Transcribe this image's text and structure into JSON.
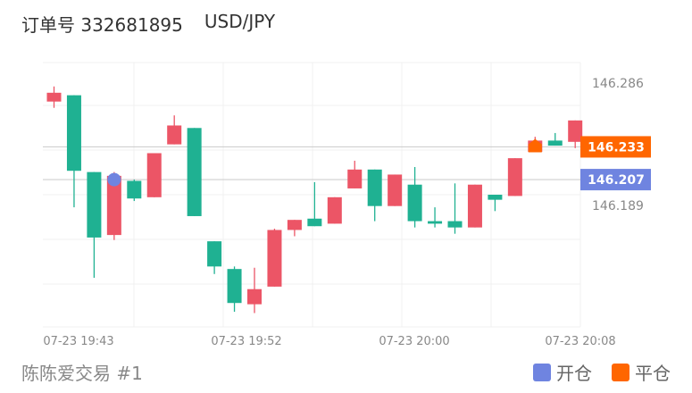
{
  "header": {
    "order_label": "订单号 332681895",
    "symbol": "USD/JPY"
  },
  "footer": {
    "account": "陈陈爱交易 #1"
  },
  "legend": [
    {
      "label": "开仓",
      "color": "#6f84e0"
    },
    {
      "label": "平仓",
      "color": "#ff6600"
    }
  ],
  "colors": {
    "up": "#ec5566",
    "down": "#1fb192",
    "open_marker": "#6f84e0",
    "close_marker": "#ff6600"
  },
  "chart_data": {
    "type": "candlestick",
    "x_ticks": [
      "07-23 19:43",
      "07-23 19:52",
      "07-23 20:00",
      "07-23 20:08"
    ],
    "y_ticks": [
      "146.286",
      "146.189"
    ],
    "price_badges": [
      {
        "label": "146.233",
        "value": 146.233,
        "color": "#ff6600"
      },
      {
        "label": "146.207",
        "value": 146.207,
        "color": "#6f84e0"
      }
    ],
    "candles": [
      {
        "o": 146.269,
        "c": 146.276,
        "h": 146.281,
        "l": 146.264
      },
      {
        "o": 146.274,
        "c": 146.214,
        "h": 146.274,
        "l": 146.185
      },
      {
        "o": 146.213,
        "c": 146.161,
        "h": 146.213,
        "l": 146.129
      },
      {
        "o": 146.163,
        "c": 146.21,
        "h": 146.213,
        "l": 146.159
      },
      {
        "o": 146.206,
        "c": 146.192,
        "h": 146.207,
        "l": 146.19
      },
      {
        "o": 146.193,
        "c": 146.228,
        "h": 146.228,
        "l": 146.193
      },
      {
        "o": 146.235,
        "c": 146.25,
        "h": 146.258,
        "l": 146.235
      },
      {
        "o": 146.248,
        "c": 146.178,
        "h": 146.248,
        "l": 146.178
      },
      {
        "o": 146.158,
        "c": 146.138,
        "h": 146.158,
        "l": 146.132
      },
      {
        "o": 146.136,
        "c": 146.109,
        "h": 146.138,
        "l": 146.102
      },
      {
        "o": 146.108,
        "c": 146.12,
        "h": 146.137,
        "l": 146.101
      },
      {
        "o": 146.122,
        "c": 146.167,
        "h": 146.168,
        "l": 146.122
      },
      {
        "o": 146.167,
        "c": 146.175,
        "h": 146.175,
        "l": 146.162
      },
      {
        "o": 146.176,
        "c": 146.17,
        "h": 146.205,
        "l": 146.17
      },
      {
        "o": 146.172,
        "c": 146.193,
        "h": 146.193,
        "l": 146.172
      },
      {
        "o": 146.2,
        "c": 146.215,
        "h": 146.222,
        "l": 146.2
      },
      {
        "o": 146.215,
        "c": 146.186,
        "h": 146.215,
        "l": 146.174
      },
      {
        "o": 146.186,
        "c": 146.211,
        "h": 146.211,
        "l": 146.186
      },
      {
        "o": 146.203,
        "c": 146.174,
        "h": 146.217,
        "l": 146.169
      },
      {
        "o": 146.174,
        "c": 146.172,
        "h": 146.185,
        "l": 146.169
      },
      {
        "o": 146.174,
        "c": 146.169,
        "h": 146.204,
        "l": 146.164
      },
      {
        "o": 146.169,
        "c": 146.203,
        "h": 146.203,
        "l": 146.169
      },
      {
        "o": 146.195,
        "c": 146.191,
        "h": 146.195,
        "l": 146.182
      },
      {
        "o": 146.194,
        "c": 146.224,
        "h": 146.224,
        "l": 146.194
      },
      {
        "o": 146.229,
        "c": 146.238,
        "h": 146.241,
        "l": 146.229
      },
      {
        "o": 146.238,
        "c": 146.234,
        "h": 146.244,
        "l": 146.234
      },
      {
        "o": 146.237,
        "c": 146.254,
        "h": 146.254,
        "l": 146.232
      }
    ],
    "markers": [
      {
        "type": "open",
        "candle": 3,
        "price": 146.207
      },
      {
        "type": "close",
        "candle": 24,
        "price": 146.233
      }
    ]
  }
}
